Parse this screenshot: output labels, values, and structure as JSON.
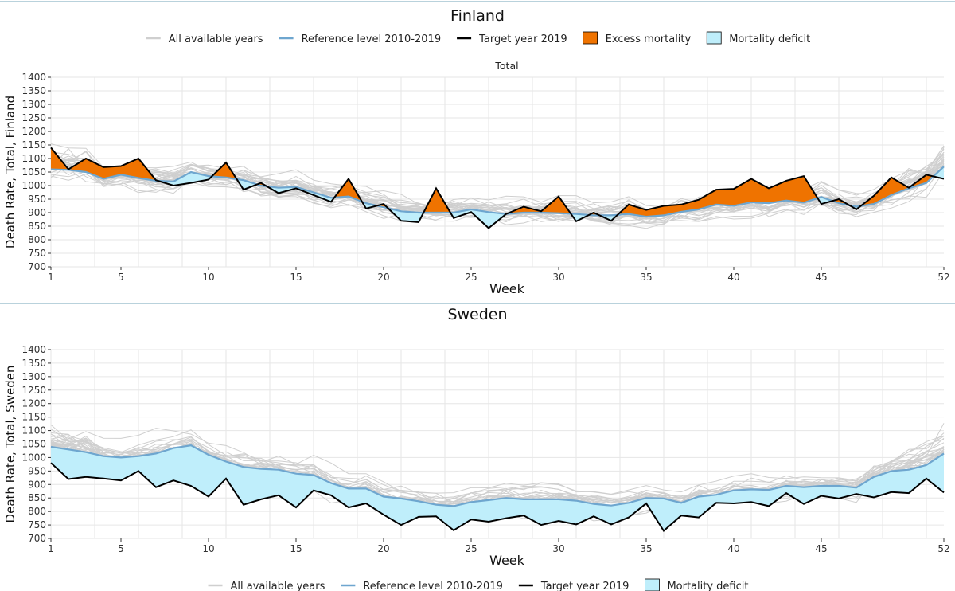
{
  "colors": {
    "background": "#ffffff",
    "grid": "#e6e6e6",
    "all_years": "#cfcfcf",
    "reference": "#6ea6cf",
    "target": "#000000",
    "excess_fill": "#ef7300",
    "deficit_fill": "#bfeefb",
    "divider": "#8fb6c8"
  },
  "legend_top": [
    {
      "label": "All available years",
      "kind": "line",
      "color_key": "all_years"
    },
    {
      "label": "Reference level 2010-2019",
      "kind": "line",
      "color_key": "reference"
    },
    {
      "label": "Target year 2019",
      "kind": "line",
      "color_key": "target"
    },
    {
      "label": "Excess mortality",
      "kind": "box",
      "color_key": "excess_fill"
    },
    {
      "label": "Mortality deficit",
      "kind": "box",
      "color_key": "deficit_fill"
    }
  ],
  "legend_bottom": [
    {
      "label": "All available years",
      "kind": "line",
      "color_key": "all_years"
    },
    {
      "label": "Reference level 2010-2019",
      "kind": "line",
      "color_key": "reference"
    },
    {
      "label": "Target year 2019",
      "kind": "line",
      "color_key": "target"
    },
    {
      "label": "Mortality deficit",
      "kind": "box",
      "color_key": "deficit_fill"
    }
  ],
  "chart_data": [
    {
      "type": "line",
      "title": "Finland",
      "subtitle": "Total",
      "xlabel": "Week",
      "ylabel": "Death Rate, Total, Finland",
      "xlim": [
        1,
        52
      ],
      "ylim": [
        700,
        1400
      ],
      "xticks": [
        1,
        5,
        10,
        15,
        20,
        25,
        30,
        35,
        40,
        45,
        52
      ],
      "yticks": [
        700,
        750,
        800,
        850,
        900,
        950,
        1000,
        1050,
        1100,
        1150,
        1200,
        1250,
        1300,
        1350,
        1400
      ],
      "grid": true,
      "background_years_count": 30,
      "series": [
        {
          "name": "Reference level 2010-2019",
          "values": [
            1060,
            1058,
            1050,
            1025,
            1040,
            1028,
            1018,
            1015,
            1050,
            1035,
            1030,
            1020,
            1000,
            992,
            995,
            975,
            955,
            960,
            935,
            920,
            905,
            900,
            900,
            900,
            912,
            902,
            895,
            900,
            900,
            898,
            895,
            890,
            890,
            895,
            885,
            890,
            903,
            912,
            930,
            925,
            938,
            935,
            945,
            937,
            958,
            935,
            922,
            932,
            965,
            990,
            1010,
            1070
          ]
        },
        {
          "name": "Target year 2019",
          "values": [
            1140,
            1060,
            1100,
            1068,
            1072,
            1100,
            1020,
            1000,
            1010,
            1022,
            1085,
            985,
            1010,
            972,
            990,
            965,
            940,
            1025,
            915,
            932,
            870,
            865,
            990,
            880,
            902,
            843,
            895,
            922,
            905,
            960,
            868,
            900,
            870,
            930,
            910,
            925,
            930,
            948,
            985,
            988,
            1025,
            990,
            1018,
            1035,
            932,
            950,
            912,
            962,
            1030,
            992,
            1040,
            1025
          ]
        }
      ]
    },
    {
      "type": "line",
      "title": "Sweden",
      "xlabel": "Week",
      "ylabel": "Death Rate, Total, Sweden",
      "xlim": [
        1,
        52
      ],
      "ylim": [
        700,
        1400
      ],
      "xticks": [
        1,
        5,
        10,
        15,
        20,
        25,
        30,
        35,
        40,
        45,
        52
      ],
      "yticks": [
        700,
        750,
        800,
        850,
        900,
        950,
        1000,
        1050,
        1100,
        1150,
        1200,
        1250,
        1300,
        1350,
        1400
      ],
      "grid": true,
      "background_years_count": 30,
      "series": [
        {
          "name": "Reference level 2010-2019",
          "values": [
            1040,
            1030,
            1020,
            1005,
            1000,
            1005,
            1015,
            1035,
            1045,
            1010,
            985,
            965,
            958,
            955,
            940,
            935,
            905,
            885,
            885,
            855,
            848,
            838,
            825,
            820,
            835,
            842,
            850,
            845,
            845,
            845,
            840,
            828,
            822,
            832,
            850,
            848,
            832,
            855,
            862,
            878,
            882,
            880,
            895,
            890,
            895,
            895,
            888,
            928,
            950,
            955,
            972,
            1015
          ]
        },
        {
          "name": "Target year 2019",
          "values": [
            980,
            920,
            928,
            922,
            915,
            950,
            890,
            915,
            895,
            855,
            922,
            825,
            845,
            860,
            815,
            878,
            860,
            815,
            830,
            788,
            750,
            780,
            782,
            730,
            770,
            762,
            775,
            785,
            750,
            765,
            752,
            782,
            752,
            778,
            830,
            728,
            785,
            778,
            832,
            830,
            835,
            820,
            868,
            828,
            858,
            848,
            865,
            852,
            872,
            868,
            922,
            870
          ]
        }
      ]
    }
  ]
}
